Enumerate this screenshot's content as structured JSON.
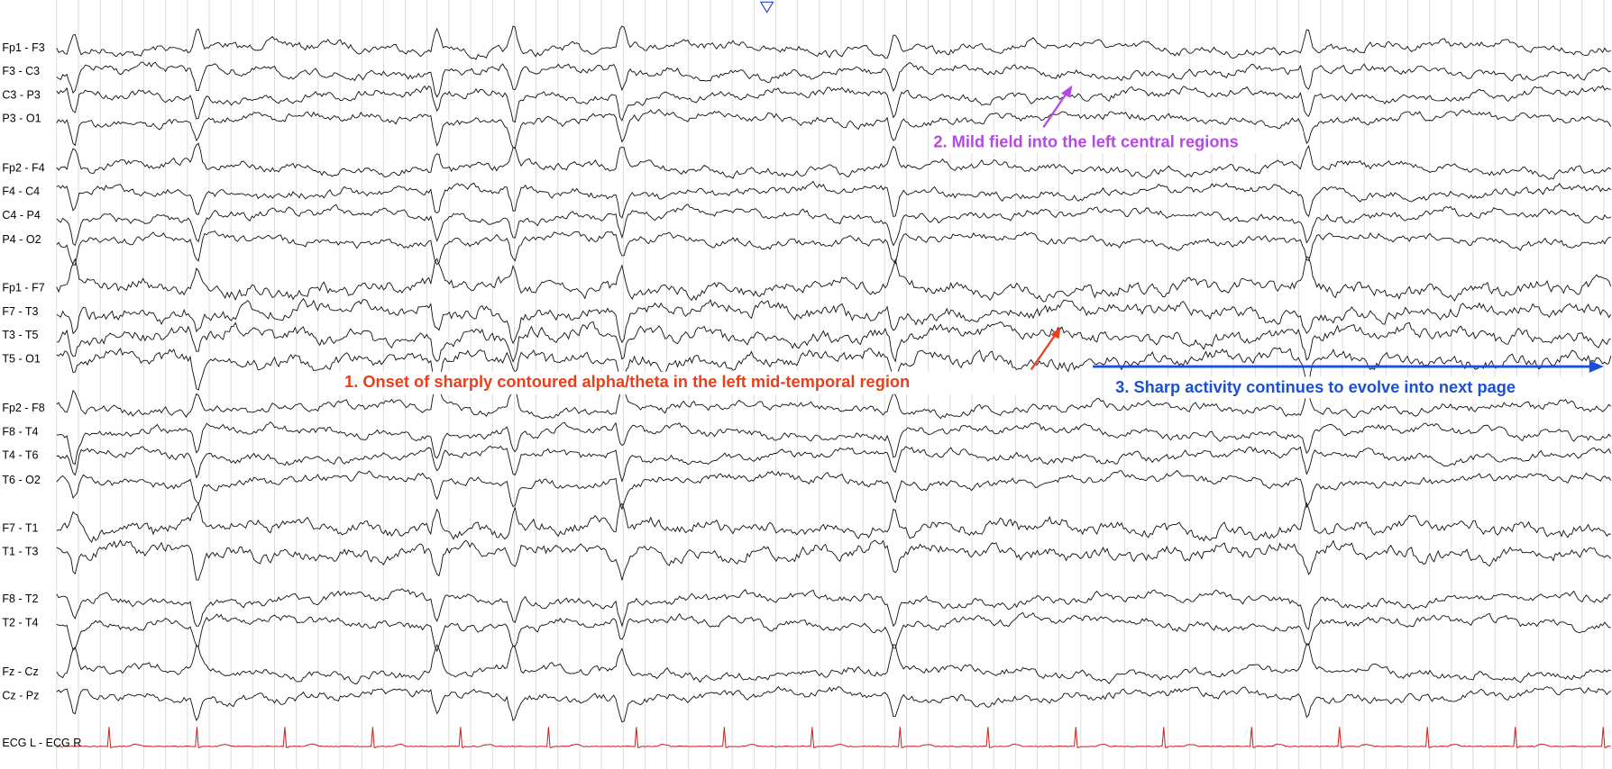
{
  "channels": [
    "Fp1 - F3",
    "F3 - C3",
    "C3 - P3",
    "P3 - O1",
    "Fp2 - F4",
    "F4 - C4",
    "C4 - P4",
    "P4 - O2",
    "Fp1 - F7",
    "F7 - T3",
    "T3 - T5",
    "T5 - O1",
    "Fp2 - F8",
    "F8 - T4",
    "T4 - T6",
    "T6 - O2",
    "F7 - T1",
    "T1 - T3",
    "F8 - T2",
    "T2 - T4",
    "Fz - Cz",
    "Cz - Pz",
    "ECG L - ECG R"
  ],
  "annotations": [
    "1. Onset of sharply contoured alpha/theta in the left mid-temporal region",
    "2. Mild field into the left central regions",
    "3. Sharp activity continues to evolve into next page"
  ]
}
